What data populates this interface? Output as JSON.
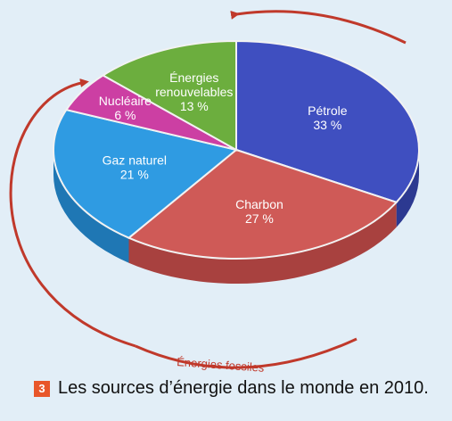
{
  "chart_data": {
    "type": "pie",
    "slices": [
      {
        "label": "Pétrole",
        "value": 33,
        "value_label": "33 %",
        "color": "#3f4fc0",
        "side": "#2c3991"
      },
      {
        "label": "Charbon",
        "value": 27,
        "value_label": "27 %",
        "color": "#cf5a57",
        "side": "#a8413f"
      },
      {
        "label": "Gaz naturel",
        "value": 21,
        "value_label": "21 %",
        "color": "#2f9be2",
        "side": "#1f77b4"
      },
      {
        "label": "Nucléaire",
        "value": 6,
        "value_label": "6 %",
        "color": "#cc3fa3",
        "side": "#9c2f7c"
      },
      {
        "label": "Énergies renouvelables",
        "label_lines": [
          "Énergies",
          "renouvelables"
        ],
        "value": 13,
        "value_label": "13 %",
        "color": "#6cae3e",
        "side": "#4e8a2a"
      }
    ],
    "annotation": "Énergies fossiles",
    "annotation_color": "#c0392b"
  },
  "figure": {
    "number": "3",
    "caption": "Les sources d’énergie dans le monde en 2010."
  }
}
